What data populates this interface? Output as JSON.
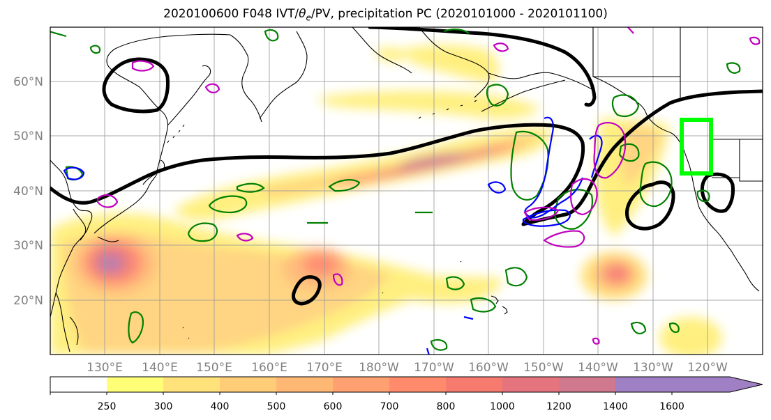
{
  "title": {
    "prefix": "2020100600 F048 IVT/",
    "theta": "θ",
    "theta_sub": "e",
    "suffix": "/PV, precipitation PC (2020101000 - 2020101100)"
  },
  "map": {
    "lat_labels": [
      "60°N",
      "50°N",
      "40°N",
      "30°N",
      "20°N"
    ],
    "lon_labels": [
      "130°E",
      "140°E",
      "150°E",
      "160°E",
      "170°E",
      "180°W",
      "170°W",
      "160°W",
      "150°W",
      "140°W",
      "130°W",
      "120°W"
    ],
    "colors": {
      "coast": "#000000",
      "contour_thick": "#000000",
      "theta_e": "#008000",
      "pv_positive": "#0000ff",
      "pv_magenta": "#c000c0",
      "target_box": "#00ff00"
    }
  },
  "colorbar": {
    "ticks": [
      "250",
      "300",
      "400",
      "500",
      "600",
      "700",
      "800",
      "1000",
      "1200",
      "1400",
      "1600"
    ],
    "colors": [
      "#ffffff",
      "#ffff77",
      "#ffe27a",
      "#ffcd78",
      "#ffb874",
      "#ffa070",
      "#ff8a6c",
      "#f77a6f",
      "#e6747e",
      "#d0788e",
      "#a080c4",
      "#a080c4"
    ]
  }
}
